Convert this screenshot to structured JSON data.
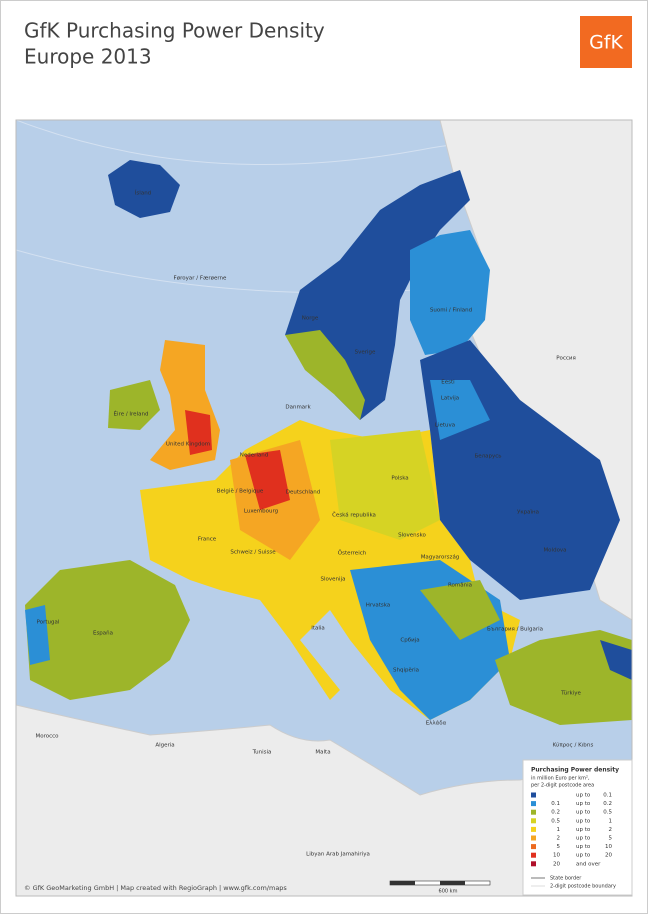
{
  "header": {
    "title_line1": "GfK Purchasing Power Density",
    "title_line2": "Europe 2013",
    "logo": "GfK"
  },
  "map": {
    "labels": [
      "Ísland",
      "Føroyar / Færøerne",
      "Norge",
      "Sverige",
      "Suomi / Finland",
      "Россия",
      "Eesti",
      "Latvija",
      "Lietuva",
      "Danmark",
      "Éire / Ireland",
      "United Kingdom",
      "Nederland",
      "België / Belgique",
      "Deutschland",
      "Polska",
      "Беларусь",
      "Україна",
      "France",
      "Luxembourg",
      "Česká republika",
      "Slovensko",
      "Schweiz / Suisse",
      "Österreich",
      "Magyarország",
      "Moldova",
      "România",
      "Slovenija",
      "Hrvatska",
      "Italia",
      "Србија",
      "България / Bulgaria",
      "Portugal",
      "España",
      "Türkiye",
      "Ελλάδα",
      "Shqipëria",
      "Κύπρος / Kıbrıs",
      "Morocco",
      "Algeria",
      "Tunisia",
      "Malta",
      "Libyan Arab Jamahiriya"
    ],
    "credit": "© GfK GeoMarketing GmbH | Map created with RegioGraph | www.gfk.com/maps",
    "scale": "600 km"
  },
  "legend": {
    "title": "Purchasing Power density",
    "subtitle_line1": "in million Euro per km²,",
    "subtitle_line2": "per 2-digit postcode area",
    "rows": [
      {
        "connector": "up to",
        "to": 0.1,
        "color": "#1f4e9c"
      },
      {
        "from": 0.1,
        "connector": "up to",
        "to": 0.2,
        "color": "#2b8fd6"
      },
      {
        "from": 0.2,
        "connector": "up to",
        "to": 0.5,
        "color": "#9db52a"
      },
      {
        "from": 0.5,
        "connector": "up to",
        "to": 1,
        "color": "#d6d324"
      },
      {
        "from": 1,
        "connector": "up to",
        "to": 2,
        "color": "#f5d21c"
      },
      {
        "from": 2,
        "connector": "up to",
        "to": 5,
        "color": "#f5a623"
      },
      {
        "from": 5,
        "connector": "up to",
        "to": 10,
        "color": "#ec6a1f"
      },
      {
        "from": 10,
        "connector": "up to",
        "to": 20,
        "color": "#e0301e"
      },
      {
        "from": 20,
        "connector": "and over",
        "color": "#b0102a"
      }
    ],
    "border_state": "State border",
    "border_postcode": "2-digit postcode boundary"
  }
}
